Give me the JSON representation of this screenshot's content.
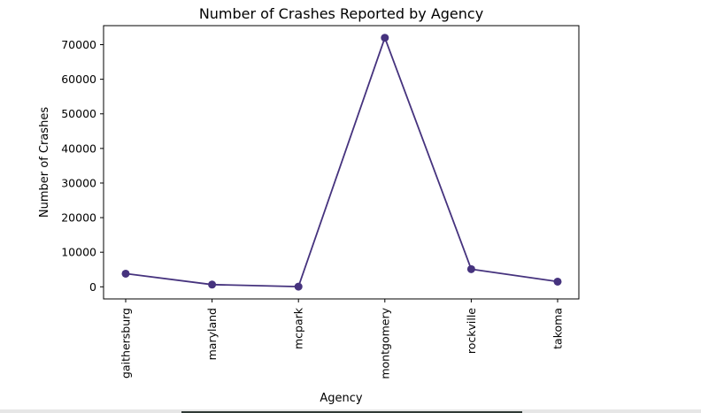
{
  "chart_data": {
    "type": "line",
    "title": "Number of Crashes Reported by Agency",
    "xlabel": "Agency",
    "ylabel": "Number of Crashes",
    "categories": [
      "gaithersburg",
      "maryland",
      "mcpark",
      "montgomery",
      "rockville",
      "takoma"
    ],
    "series": [
      {
        "values": [
          3800,
          650,
          60,
          72000,
          5100,
          1500
        ]
      }
    ],
    "yticks": [
      0,
      10000,
      20000,
      30000,
      40000,
      50000,
      60000,
      70000
    ],
    "ytick_labels": [
      "0",
      "10000",
      "20000",
      "30000",
      "40000",
      "50000",
      "60000",
      "70000"
    ],
    "ylim": [
      -3500,
      75500
    ],
    "grid": false,
    "legend": "none",
    "line_color": "#46337e",
    "marker": "circle"
  }
}
